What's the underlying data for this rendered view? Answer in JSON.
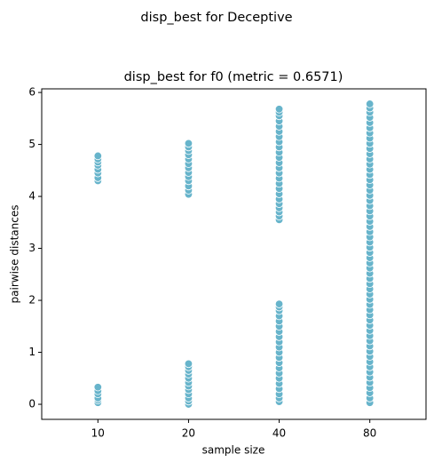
{
  "chart_data": {
    "type": "strip",
    "suptitle": "disp_best for Deceptive",
    "title": "disp_best for f0 (metric = 0.6571)",
    "xlabel": "sample size",
    "ylabel": "pairwise distances",
    "categories": [
      "10",
      "20",
      "40",
      "80"
    ],
    "values": [
      [
        4.3,
        4.36,
        4.45,
        4.52,
        4.6,
        4.66,
        4.72,
        4.78,
        0.03,
        0.08,
        0.12,
        0.2,
        0.26,
        0.33
      ],
      [
        4.04,
        4.12,
        4.2,
        4.3,
        4.38,
        4.46,
        4.55,
        4.63,
        4.72,
        4.8,
        4.88,
        4.95,
        5.02,
        0.0,
        0.06,
        0.12,
        0.2,
        0.28,
        0.35,
        0.42,
        0.5,
        0.58,
        0.65,
        0.72,
        0.78
      ],
      [
        3.55,
        3.62,
        3.7,
        3.78,
        3.86,
        3.95,
        4.05,
        4.15,
        4.25,
        4.35,
        4.45,
        4.55,
        4.65,
        4.75,
        4.85,
        4.95,
        5.05,
        5.15,
        5.25,
        5.35,
        5.45,
        5.55,
        5.62,
        5.68,
        0.05,
        0.12,
        0.2,
        0.3,
        0.4,
        0.5,
        0.6,
        0.7,
        0.8,
        0.9,
        1.0,
        1.1,
        1.2,
        1.3,
        1.4,
        1.5,
        1.6,
        1.7,
        1.8,
        1.87,
        1.93
      ],
      [
        0.03,
        0.12,
        0.22,
        0.32,
        0.42,
        0.52,
        0.62,
        0.72,
        0.82,
        0.92,
        1.02,
        1.12,
        1.22,
        1.32,
        1.42,
        1.52,
        1.62,
        1.72,
        1.82,
        1.92,
        2.02,
        2.12,
        2.22,
        2.32,
        2.42,
        2.52,
        2.62,
        2.72,
        2.82,
        2.92,
        3.02,
        3.12,
        3.22,
        3.32,
        3.42,
        3.52,
        3.62,
        3.72,
        3.82,
        3.92,
        4.02,
        4.12,
        4.22,
        4.32,
        4.42,
        4.52,
        4.62,
        4.72,
        4.82,
        4.92,
        5.02,
        5.12,
        5.22,
        5.32,
        5.42,
        5.52,
        5.62,
        5.7,
        5.78
      ]
    ],
    "color": "#67b4cb",
    "ylim": [
      -0.29,
      6.07
    ],
    "yticks": [
      0,
      1,
      2,
      3,
      4,
      5,
      6
    ]
  }
}
